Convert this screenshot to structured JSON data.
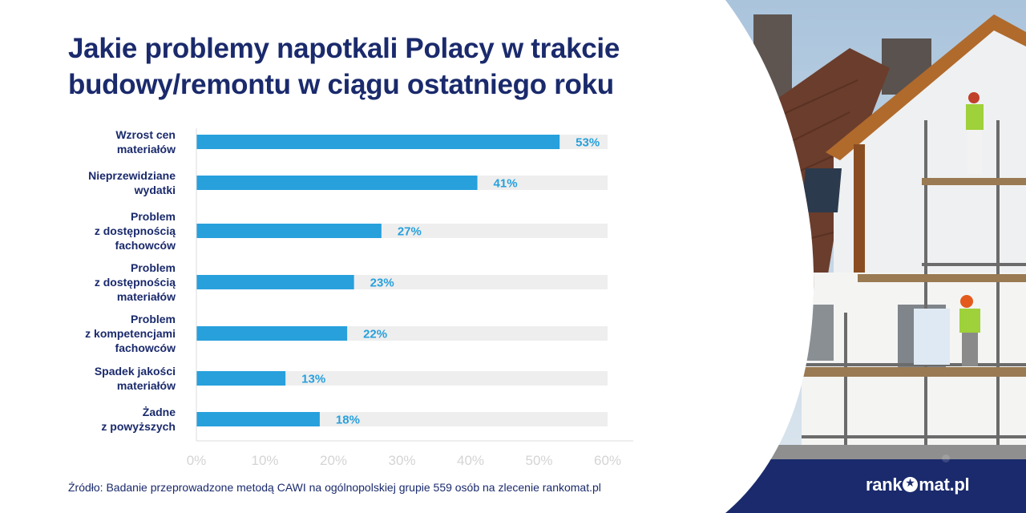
{
  "title_line1": "Jakie problemy napotkali Polacy w trakcie",
  "title_line2": "budowy/remontu w ciągu ostatniego roku",
  "source": "Źródło: Badanie przeprowadzone metodą CAWI na ogólnopolskiej grupie 559 osób na zlecenie rankomat.pl",
  "logo": {
    "prefix": "rank",
    "suffix": "mat.pl"
  },
  "colors": {
    "title": "#1a2a6c",
    "bar": "#27a0dc",
    "track": "#eeeeee",
    "tick": "#d4d4d4",
    "brand": "#1a2a6c"
  },
  "chart_data": {
    "type": "bar",
    "orientation": "horizontal",
    "title": "Jakie problemy napotkali Polacy w trakcie budowy/remontu w ciągu ostatniego roku",
    "categories": [
      [
        "Wzrost cen",
        "materiałów"
      ],
      [
        "Nieprzewidziane",
        "wydatki"
      ],
      [
        "Problem",
        "z dostępnością",
        "fachowców"
      ],
      [
        "Problem",
        "z dostępnością",
        "materiałów"
      ],
      [
        "Problem",
        "z kompetencjami",
        "fachowców"
      ],
      [
        "Spadek jakości",
        "materiałów"
      ],
      [
        "Żadne",
        "z powyższych"
      ]
    ],
    "values": [
      53,
      41,
      27,
      23,
      22,
      13,
      18
    ],
    "value_labels": [
      "53%",
      "41%",
      "27%",
      "23%",
      "22%",
      "13%",
      "18%"
    ],
    "xlim": [
      0,
      60
    ],
    "xticks": [
      0,
      10,
      20,
      30,
      40,
      50,
      60
    ],
    "xtick_labels": [
      "0%",
      "10%",
      "20%",
      "30%",
      "40%",
      "50%",
      "60%"
    ],
    "xlabel": "",
    "ylabel": "",
    "grid": false,
    "legend": "none"
  }
}
